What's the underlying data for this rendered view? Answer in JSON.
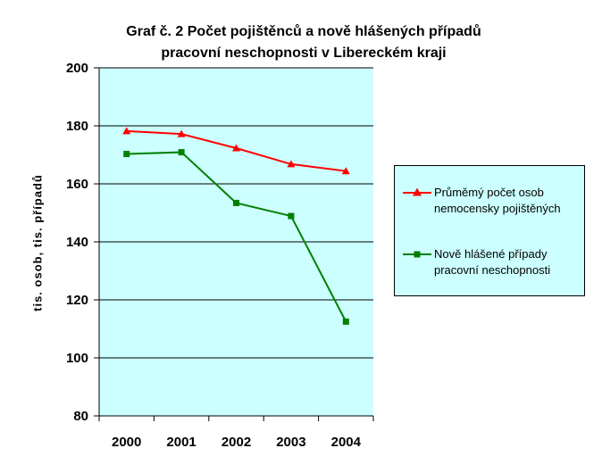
{
  "chart_data": {
    "type": "line",
    "title_lines": [
      "Graf č. 2 Počet pojištěnců a nově hlášených případů",
      "pracovní neschopnosti v Libereckém kraji"
    ],
    "ylabel": "tis. osob, tis. případů",
    "xlabel": "",
    "categories": [
      "2000",
      "2001",
      "2002",
      "2003",
      "2004"
    ],
    "ylim": [
      80,
      200
    ],
    "yticks": [
      80,
      100,
      120,
      140,
      160,
      180,
      200
    ],
    "grid": true,
    "legend_position": "right",
    "series": [
      {
        "name_lines": [
          "Průměmý počet osob",
          "nemocensky pojištěných"
        ],
        "values": [
          178.2,
          177.2,
          172.3,
          166.8,
          164.4
        ],
        "color": "#ff0000",
        "marker": "triangle"
      },
      {
        "name_lines": [
          "Nově hlášené případy",
          "pracovní neschopnosti"
        ],
        "values": [
          170.3,
          170.9,
          153.4,
          148.9,
          112.5
        ],
        "color": "#008000",
        "marker": "square"
      }
    ],
    "plot_background": "#ccffff"
  }
}
